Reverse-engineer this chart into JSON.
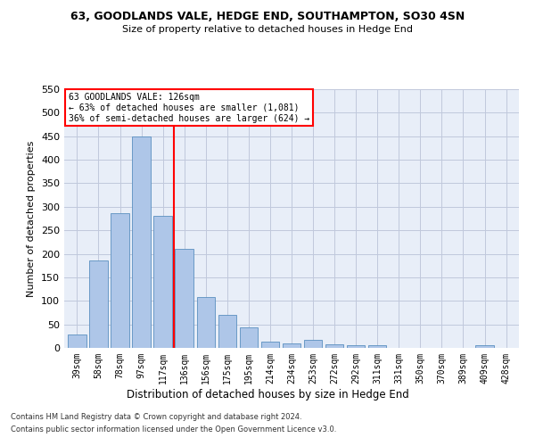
{
  "title1": "63, GOODLANDS VALE, HEDGE END, SOUTHAMPTON, SO30 4SN",
  "title2": "Size of property relative to detached houses in Hedge End",
  "xlabel": "Distribution of detached houses by size in Hedge End",
  "ylabel": "Number of detached properties",
  "categories": [
    "39sqm",
    "58sqm",
    "78sqm",
    "97sqm",
    "117sqm",
    "136sqm",
    "156sqm",
    "175sqm",
    "195sqm",
    "214sqm",
    "234sqm",
    "253sqm",
    "272sqm",
    "292sqm",
    "311sqm",
    "331sqm",
    "350sqm",
    "370sqm",
    "389sqm",
    "409sqm",
    "428sqm"
  ],
  "values": [
    28,
    185,
    286,
    450,
    280,
    210,
    108,
    70,
    44,
    13,
    10,
    18,
    8,
    5,
    5,
    0,
    0,
    0,
    0,
    5,
    0
  ],
  "bar_color": "#aec6e8",
  "bar_edge_color": "#5a8fc0",
  "red_line_x": 4.5,
  "red_line_label": "63 GOODLANDS VALE: 126sqm",
  "annotation_line2": "← 63% of detached houses are smaller (1,081)",
  "annotation_line3": "36% of semi-detached houses are larger (624) →",
  "box_color": "#cc0000",
  "footnote1": "Contains HM Land Registry data © Crown copyright and database right 2024.",
  "footnote2": "Contains public sector information licensed under the Open Government Licence v3.0.",
  "ylim": [
    0,
    550
  ],
  "yticks": [
    0,
    50,
    100,
    150,
    200,
    250,
    300,
    350,
    400,
    450,
    500,
    550
  ],
  "background_color": "#e8eef8",
  "grid_color": "#c0c8dc"
}
